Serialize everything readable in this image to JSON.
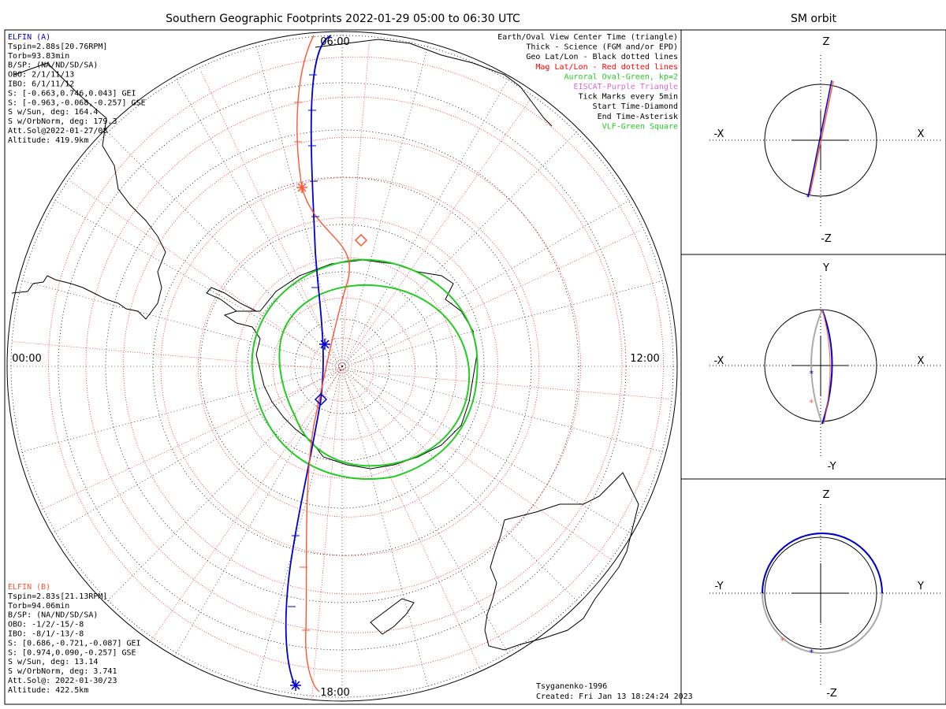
{
  "main": {
    "title": "Southern Geographic Footprints 2022-01-29 05:00 to 06:30 UTC",
    "time_labels": {
      "top": "06:00",
      "left": "00:00",
      "right": "12:00",
      "bottom": "18:00"
    }
  },
  "legend": [
    {
      "text": "Earth/Oval View Center Time (triangle)",
      "color": "#000000"
    },
    {
      "text": "Thick - Science (FGM and/or EPD)",
      "color": "#000000"
    },
    {
      "text": "Geo Lat/Lon - Black dotted lines",
      "color": "#000000"
    },
    {
      "text": "Mag Lat/Lon - Red dotted lines",
      "color": "#ff0000"
    },
    {
      "text": "Auroral Oval-Green, kp=2",
      "color": "#22cc22"
    },
    {
      "text": "EISCAT-Purple Triangle",
      "color": "#dd66dd"
    },
    {
      "text": "Tick Marks every 5min",
      "color": "#000000"
    },
    {
      "text": "Start Time-Diamond",
      "color": "#000000"
    },
    {
      "text": "End Time-Asterisk",
      "color": "#000000"
    },
    {
      "text": "VLF-Green Square",
      "color": "#22cc22"
    }
  ],
  "elfin_a": {
    "name": "ELFIN (A)",
    "color": "#0000cc",
    "lines": [
      "Tspin=2.88s[20.76RPM]",
      "Torb=93.83min",
      "B/SP: (NA/ND/SD/SA)",
      "OBO: 2/1/11/13",
      "IBO: 6/1/11/12",
      "S: [-0.663,0.746,0.043] GEI",
      "S: [-0.963,-0.068,-0.257] GSE",
      "S w/Sun, deg: 164.4",
      "S w/OrbNorm, deg: 179.3",
      "Att.Sol@2022-01-27/08",
      "Altitude: 419.9km"
    ]
  },
  "elfin_b": {
    "name": "ELFIN (B)",
    "color": "#ff5533",
    "lines": [
      "Tspin=2.83s[21.13RPM]",
      "Torb=94.06min",
      "B/SP: (NA/ND/SD/SA)",
      "OBO: -1/2/-15/-8",
      "IBO: -8/1/-13/-8",
      "S: [0.686,-0.721,-0.087] GEI",
      "S: [0.974,0.090,-0.257] GSE",
      "S w/Sun, deg: 13.14",
      "S w/OrbNorm, deg: 3.741",
      "Att.Sol@: 2022-01-30/23",
      "Altitude: 422.5km"
    ]
  },
  "credits": {
    "model": "Tsyganenko-1996",
    "created": "Created: Fri Jan 13 18:24:24 2023"
  },
  "sm_orbit": {
    "title": "SM orbit",
    "panels": [
      {
        "top": "Z",
        "bottom": "-Z",
        "left": "-X",
        "right": "X"
      },
      {
        "top": "Y",
        "bottom": "-Y",
        "left": "-X",
        "right": "X"
      },
      {
        "top": "Z",
        "bottom": "-Z",
        "left": "-Y",
        "right": "Y"
      }
    ]
  },
  "colors": {
    "elfin_a": "#0000cc",
    "elfin_b": "#ff5533",
    "oval": "#22cc22",
    "geo_grid": "#000000",
    "mag_grid": "#ff0000"
  }
}
